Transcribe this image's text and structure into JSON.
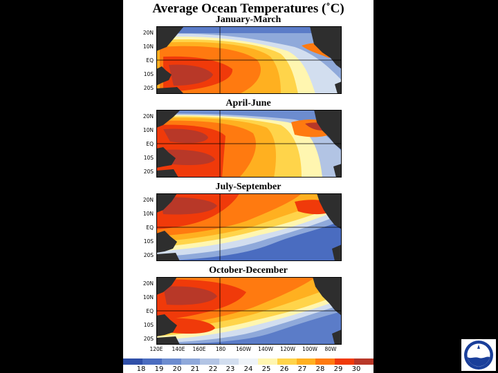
{
  "title": "Average Ocean Temperatures (˚C)",
  "seasons": [
    "January-March",
    "April-June",
    "July-September",
    "October-December"
  ],
  "lat_labels": [
    "20N",
    "10N",
    "EQ",
    "10S",
    "20S"
  ],
  "lon_labels": [
    "120E",
    "140E",
    "160E",
    "180",
    "160W",
    "140W",
    "120W",
    "100W",
    "80W"
  ],
  "colorbar": {
    "labels": [
      "18",
      "19",
      "20",
      "21",
      "22",
      "23",
      "24",
      "25",
      "26",
      "27",
      "28",
      "29",
      "30"
    ],
    "colors": [
      "#2f4fa8",
      "#4a6cc0",
      "#6c8ccf",
      "#8fa9da",
      "#b2c4e4",
      "#d2deef",
      "#eef3f8",
      "#fff6b0",
      "#ffd44a",
      "#ffb020",
      "#ff7a10",
      "#f03a0a",
      "#b83828"
    ]
  },
  "colors": {
    "land": "#2e2e2e",
    "background": "#000000",
    "panel": "#ffffff"
  },
  "logo": {
    "icon": "noaa-logo-icon"
  }
}
